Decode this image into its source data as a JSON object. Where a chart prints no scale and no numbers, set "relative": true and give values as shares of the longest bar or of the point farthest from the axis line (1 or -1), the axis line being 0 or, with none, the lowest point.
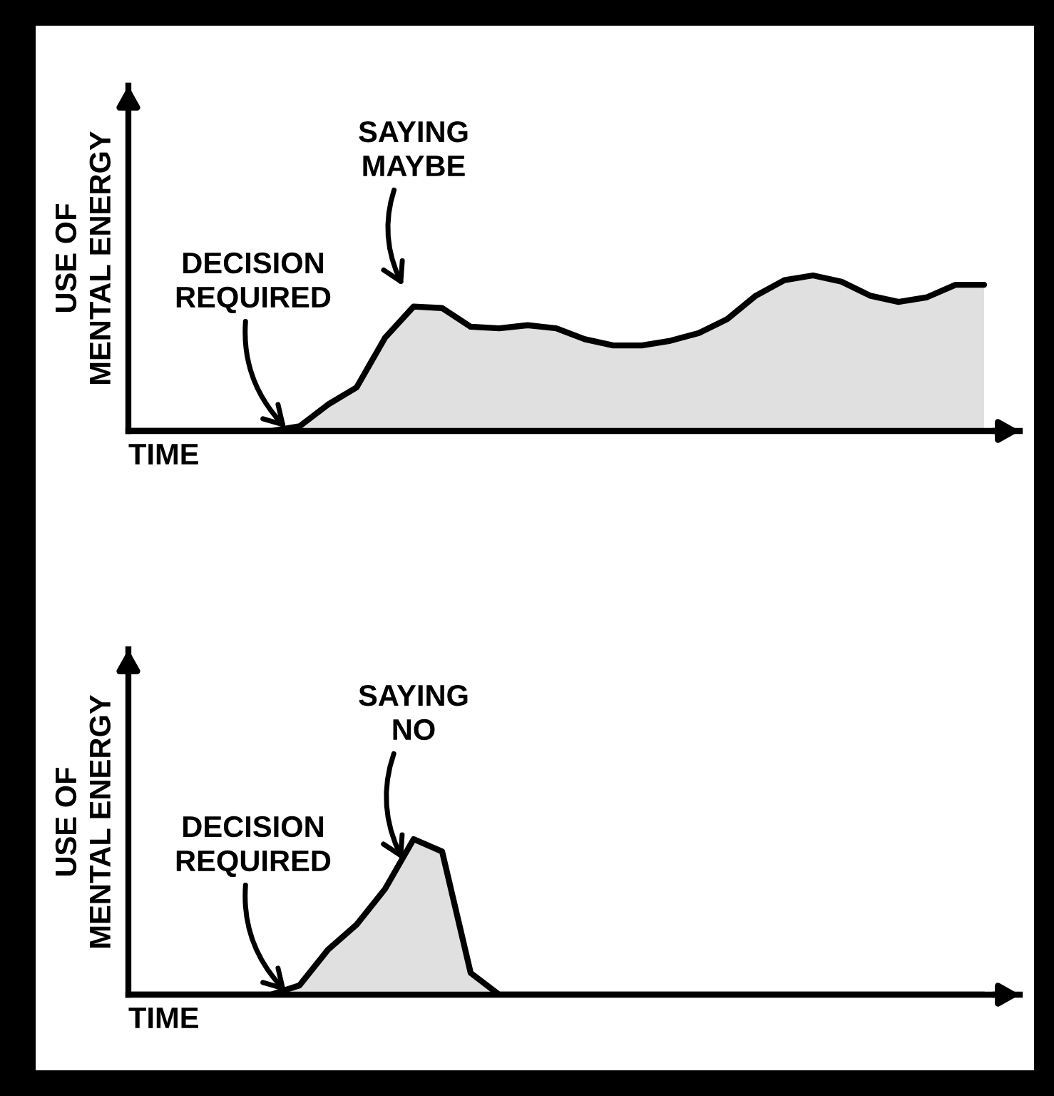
{
  "chart_data": [
    {
      "type": "area",
      "relative": true,
      "xlabel": "TIME",
      "ylabel": "USE OF\nMENTAL ENERGY",
      "tick_labels": false,
      "grid": false,
      "categories": [
        null,
        null,
        null,
        null,
        null,
        null,
        null,
        null,
        null,
        null,
        null,
        null,
        null,
        null,
        null,
        null,
        null,
        null,
        null,
        null,
        null,
        null,
        null,
        null,
        null,
        null,
        null,
        null,
        null,
        null,
        null
      ],
      "series": [
        {
          "color": "#e0e0e0",
          "values": [
            0,
            0,
            0,
            0,
            0,
            0,
            0.03,
            0.17,
            0.28,
            0.6,
            0.8,
            0.79,
            0.67,
            0.66,
            0.68,
            0.66,
            0.59,
            0.55,
            0.55,
            0.58,
            0.63,
            0.72,
            0.87,
            0.97,
            1,
            0.96,
            0.87,
            0.83,
            0.86,
            0.94,
            0.94
          ]
        }
      ],
      "annotations": [
        "DECISION\nREQUIRED",
        "SAYING\nMAYBE"
      ]
    },
    {
      "type": "area",
      "relative": true,
      "xlabel": "TIME",
      "ylabel": "USE OF\nMENTAL ENERGY",
      "tick_labels": false,
      "grid": false,
      "categories": [
        null,
        null,
        null,
        null,
        null,
        null,
        null,
        null,
        null,
        null,
        null,
        null,
        null,
        null,
        null,
        null,
        null,
        null,
        null,
        null,
        null,
        null,
        null,
        null,
        null,
        null,
        null,
        null,
        null,
        null,
        null
      ],
      "series": [
        {
          "color": "#e0e0e0",
          "values": [
            0,
            0,
            0,
            0,
            0,
            0,
            0.06,
            0.29,
            0.45,
            0.68,
            1,
            0.92,
            0.14,
            0,
            0,
            0,
            0,
            0,
            0,
            0,
            0,
            0,
            0,
            0,
            0,
            0,
            0,
            0,
            0,
            0,
            0
          ]
        }
      ],
      "annotations": [
        "DECISION\nREQUIRED",
        "SAYING\nNO"
      ]
    }
  ]
}
